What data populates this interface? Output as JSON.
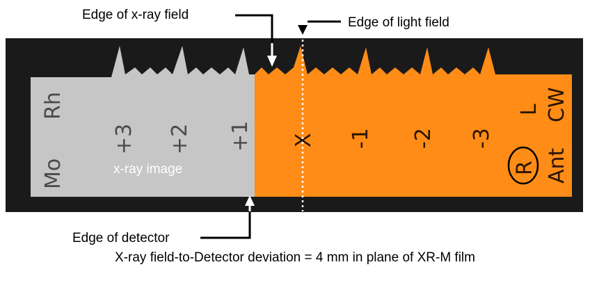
{
  "labels": {
    "edge_xray_field": "Edge of x-ray field",
    "edge_light_field": "Edge of light field",
    "edge_detector": "Edge of detector",
    "xray_image": "x-ray image"
  },
  "film_marks": {
    "mo": "Mo",
    "rh": "Rh",
    "plus3": "+3",
    "plus2": "+2",
    "plus1": "+1",
    "center": "X",
    "minus1": "-1",
    "minus2": "-2",
    "minus3": "-3",
    "l": "L",
    "cw": "CW",
    "r": "R",
    "ant": "Ant"
  },
  "caption": "X-ray field-to-Detector deviation = 4 mm in plane of XR-M film",
  "colors": {
    "film_dark": "#1a1a1a",
    "xray_gray": "#c6c6c6",
    "light_orange": "#ff8c16"
  }
}
